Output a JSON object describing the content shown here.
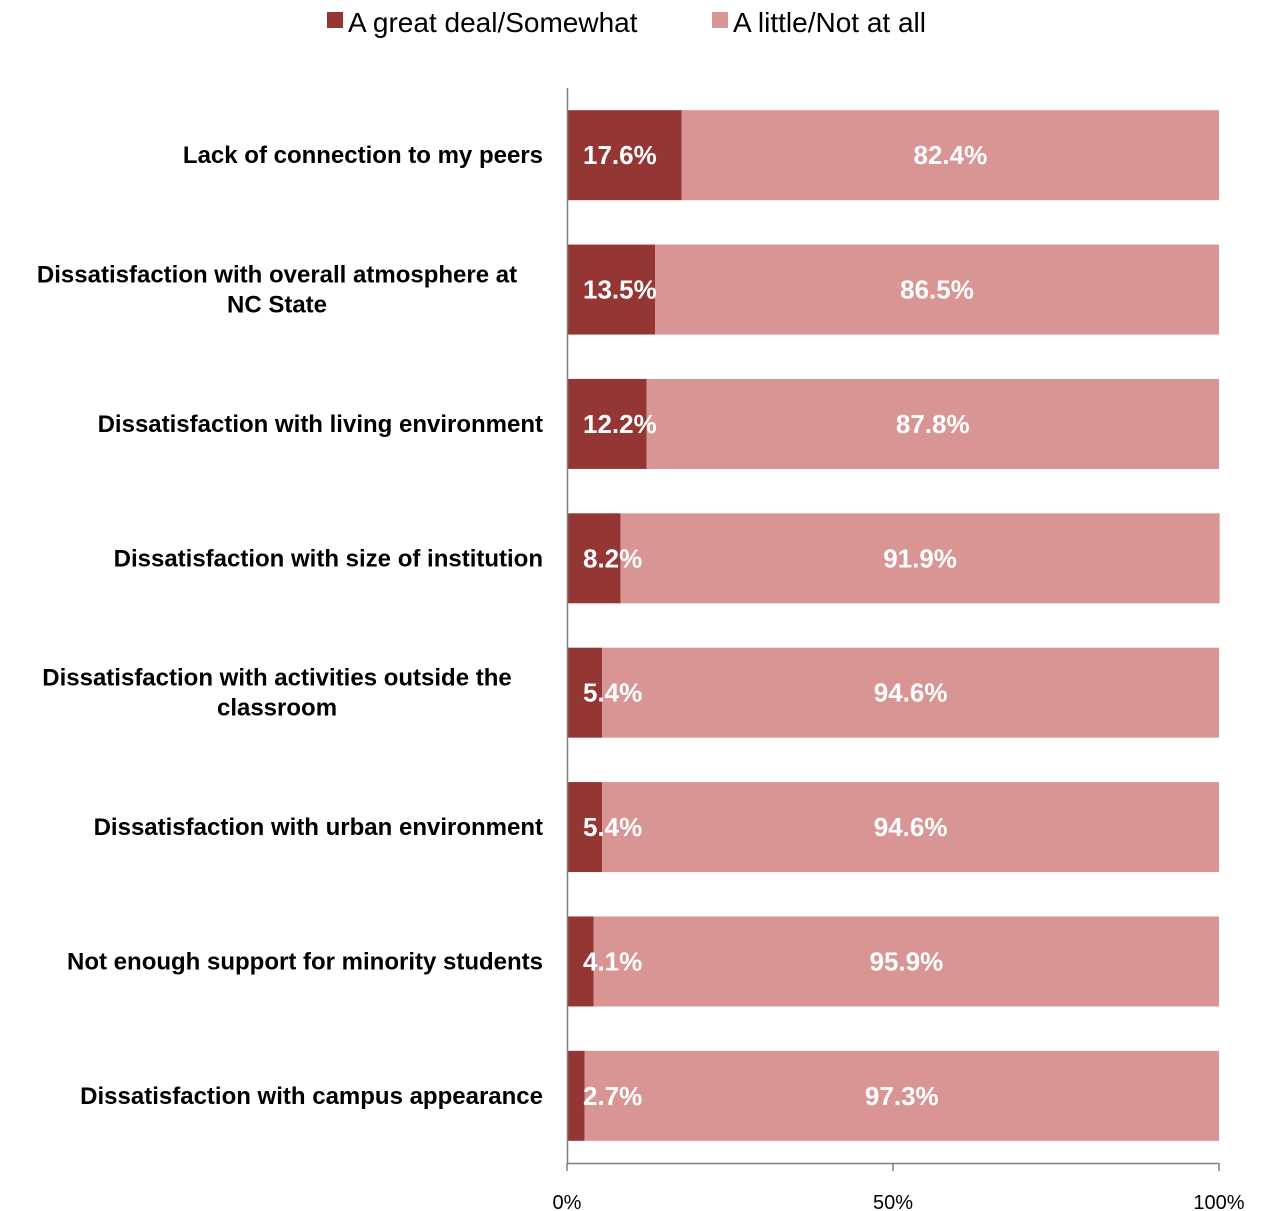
{
  "chart_data": {
    "type": "bar",
    "orientation": "horizontal",
    "stacked": true,
    "categories": [
      [
        "Lack of connection to my peers"
      ],
      [
        "Dissatisfaction with overall atmosphere at",
        "NC State"
      ],
      [
        "Dissatisfaction with living environment"
      ],
      [
        "Dissatisfaction with size of institution"
      ],
      [
        "Dissatisfaction with activities outside the",
        "classroom"
      ],
      [
        "Dissatisfaction with urban environment"
      ],
      [
        "Not enough support for minority students"
      ],
      [
        "Dissatisfaction with campus appearance"
      ]
    ],
    "series": [
      {
        "name": "A great deal/Somewhat",
        "color": "#943634",
        "values": [
          17.6,
          13.5,
          12.2,
          8.2,
          5.4,
          5.4,
          4.1,
          2.7
        ],
        "labels": [
          "17.6%",
          "13.5%",
          "12.2%",
          "8.2%",
          "5.4%",
          "5.4%",
          "4.1%",
          "2.7%"
        ]
      },
      {
        "name": "A little/Not at all",
        "color": "#d99594",
        "values": [
          82.4,
          86.5,
          87.8,
          91.9,
          94.6,
          94.6,
          95.9,
          97.3
        ],
        "labels": [
          "82.4%",
          "86.5%",
          "87.8%",
          "91.9%",
          "94.6%",
          "94.6%",
          "95.9%",
          "97.3%"
        ]
      }
    ],
    "xlim": [
      0,
      100
    ],
    "xticks": [
      0,
      50,
      100
    ],
    "xtick_labels": [
      "0%",
      "50%",
      "100%"
    ],
    "legend_position": "top",
    "grid": false
  }
}
